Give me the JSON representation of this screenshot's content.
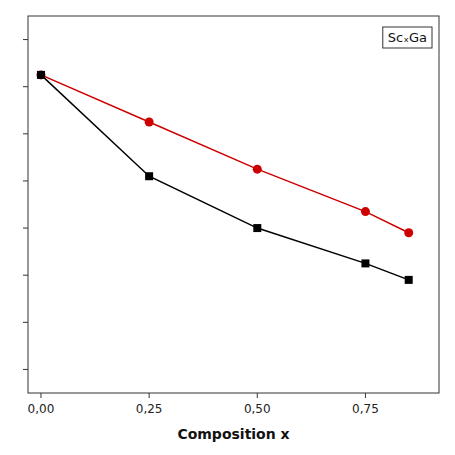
{
  "chart_data": {
    "type": "line",
    "xlabel": "Composition x",
    "annotation": "ScₓGa",
    "x": [
      0.0,
      0.25,
      0.5,
      0.75,
      0.85
    ],
    "series": [
      {
        "values": [
          5.85,
          5.65,
          5.45,
          5.27,
          5.18
        ],
        "color": "#cc0000",
        "marker": "circle"
      },
      {
        "values": [
          5.85,
          5.42,
          5.2,
          5.05,
          4.98
        ],
        "color": "#000000",
        "marker": "square"
      }
    ],
    "xlim": [
      -0.03,
      0.92
    ],
    "ylim": [
      4.5,
      6.1
    ],
    "xticks": [
      {
        "value": 0.0,
        "label": "0,00"
      },
      {
        "value": 0.25,
        "label": "0,25"
      },
      {
        "value": 0.5,
        "label": "0,50"
      },
      {
        "value": 0.75,
        "label": "0,75"
      }
    ],
    "yticks": [
      4.6,
      4.8,
      5.0,
      5.2,
      5.4,
      5.6,
      5.8,
      6.0
    ],
    "tick_labels": "x"
  }
}
